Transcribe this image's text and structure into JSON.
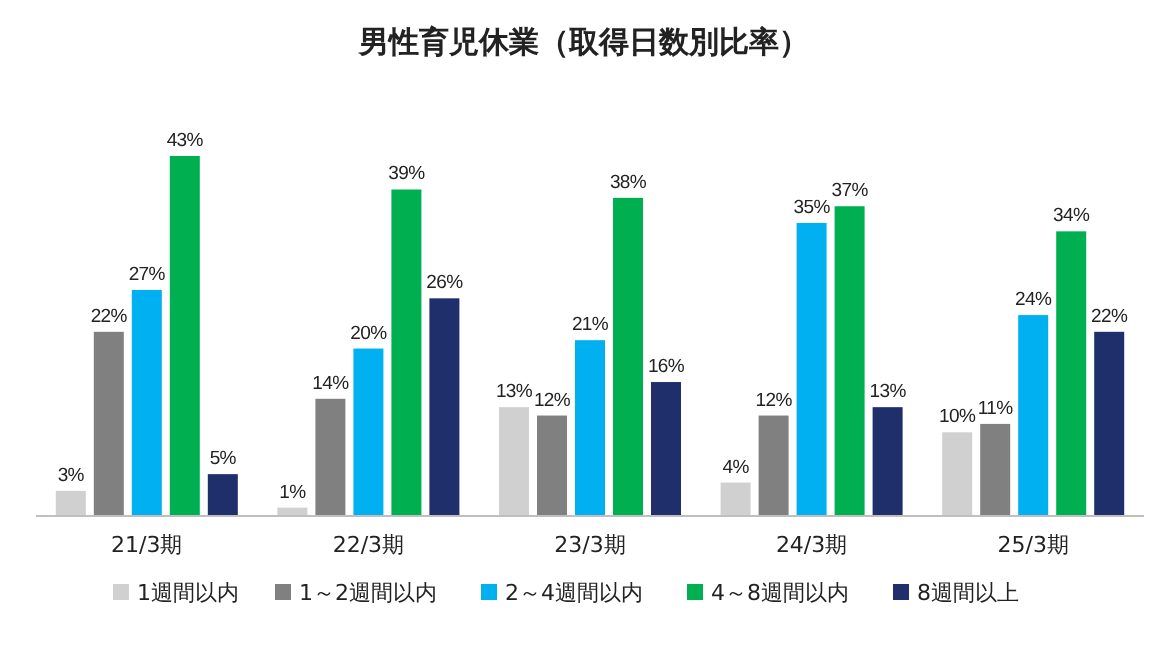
{
  "chart_data": {
    "type": "bar",
    "title": "男性育児休業（取得日数別比率）",
    "categories": [
      "21/3期",
      "22/3期",
      "23/3期",
      "24/3期",
      "25/3期"
    ],
    "series": [
      {
        "name": "1週間以内",
        "color": "#d0d0d0",
        "values": [
          3,
          1,
          13,
          4,
          10
        ],
        "value_labels": [
          "3%",
          "1%",
          "13%",
          "4%",
          "10%"
        ]
      },
      {
        "name": "1～2週間以内",
        "color": "#808080",
        "values": [
          22,
          14,
          12,
          12,
          11
        ],
        "value_labels": [
          "22%",
          "14%",
          "12%",
          "12%",
          "11%"
        ]
      },
      {
        "name": "2～4週間以内",
        "color": "#00b0f0",
        "values": [
          27,
          20,
          21,
          35,
          24
        ],
        "value_labels": [
          "27%",
          "20%",
          "21%",
          "35%",
          "24%"
        ]
      },
      {
        "name": "4～8週間以内",
        "color": "#00b050",
        "values": [
          43,
          39,
          38,
          37,
          34
        ],
        "value_labels": [
          "43%",
          "39%",
          "38%",
          "37%",
          "34%"
        ]
      },
      {
        "name": "8週間以上",
        "color": "#1f2f6b",
        "values": [
          5,
          26,
          16,
          13,
          22
        ],
        "value_labels": [
          "5%",
          "26%",
          "16%",
          "13%",
          "22%"
        ]
      }
    ],
    "legend": "bottom"
  }
}
